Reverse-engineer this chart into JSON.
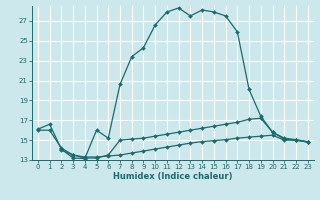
{
  "xlabel": "Humidex (Indice chaleur)",
  "background_color": "#cce8ec",
  "grid_color": "#ffffff",
  "line_color": "#1a6b6b",
  "xlim": [
    -0.5,
    23.5
  ],
  "ylim": [
    13,
    28.5
  ],
  "xticks": [
    0,
    1,
    2,
    3,
    4,
    5,
    6,
    7,
    8,
    9,
    10,
    11,
    12,
    13,
    14,
    15,
    16,
    17,
    18,
    19,
    20,
    21,
    22,
    23
  ],
  "yticks": [
    13,
    15,
    17,
    19,
    21,
    23,
    25,
    27
  ],
  "line1_x": [
    0,
    1,
    2,
    3,
    4,
    5,
    6,
    7,
    8,
    9,
    10,
    11,
    12,
    13,
    14,
    15,
    16,
    17,
    18,
    19,
    20,
    21,
    22,
    23
  ],
  "line1_y": [
    16.1,
    16.6,
    14.1,
    13.2,
    13.15,
    16.0,
    15.2,
    20.6,
    23.4,
    24.3,
    26.6,
    27.9,
    28.3,
    27.5,
    28.1,
    27.9,
    27.5,
    25.9,
    20.1,
    17.4,
    15.8,
    15.2,
    15.05,
    14.85
  ],
  "line2_x": [
    0,
    1,
    2,
    3,
    4,
    5,
    6,
    7,
    8,
    9,
    10,
    11,
    12,
    13,
    14,
    15,
    16,
    17,
    18,
    19,
    20,
    21,
    22,
    23
  ],
  "line2_y": [
    16.0,
    16.0,
    14.2,
    13.5,
    13.2,
    13.2,
    13.5,
    15.0,
    15.1,
    15.2,
    15.4,
    15.6,
    15.8,
    16.0,
    16.2,
    16.4,
    16.6,
    16.8,
    17.1,
    17.2,
    15.8,
    15.1,
    15.0,
    14.8
  ],
  "line3_x": [
    2,
    3,
    4,
    5,
    6,
    7,
    8,
    9,
    10,
    11,
    12,
    13,
    14,
    15,
    16,
    17,
    18,
    19,
    20,
    21,
    22,
    23
  ],
  "line3_y": [
    14.0,
    13.5,
    13.3,
    13.3,
    13.4,
    13.5,
    13.7,
    13.9,
    14.1,
    14.3,
    14.5,
    14.7,
    14.85,
    14.95,
    15.05,
    15.2,
    15.3,
    15.4,
    15.5,
    15.0,
    15.0,
    14.8
  ]
}
